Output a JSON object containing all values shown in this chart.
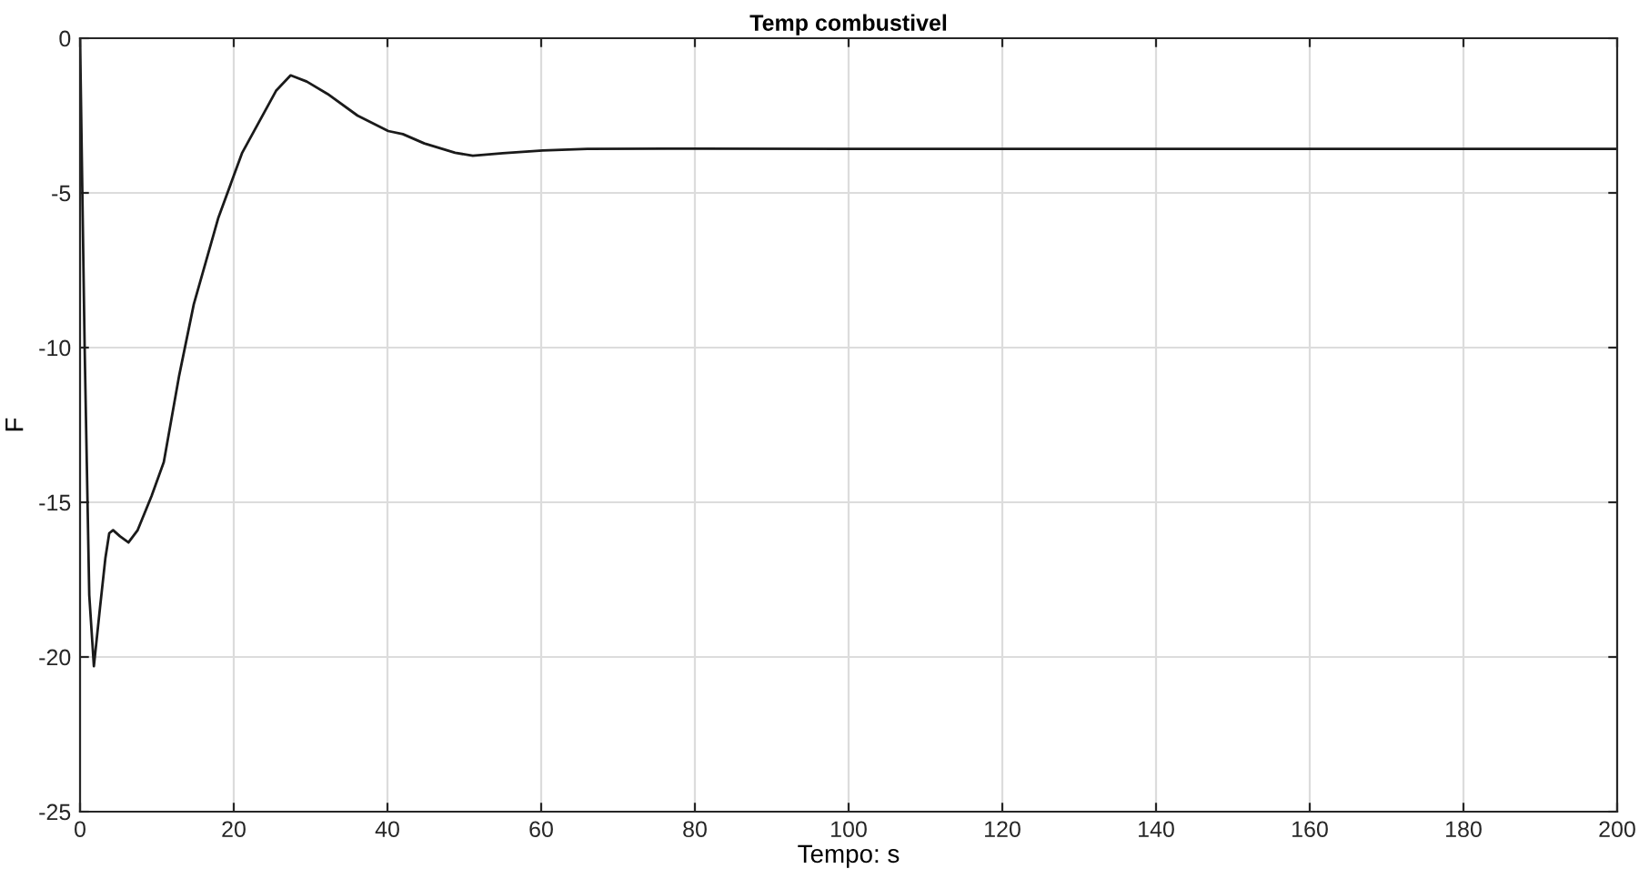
{
  "chart_data": {
    "type": "line",
    "title": "Temp combustivel",
    "xlabel": "Tempo: s",
    "ylabel": "F",
    "xlim": [
      0,
      200
    ],
    "ylim": [
      -25,
      0
    ],
    "xticks": [
      0,
      20,
      40,
      60,
      80,
      100,
      120,
      140,
      160,
      180,
      200
    ],
    "yticks": [
      -25,
      -20,
      -15,
      -10,
      -5,
      0
    ],
    "grid": true,
    "series": [
      {
        "color": "#1a1a1a",
        "x": [
          0,
          0.6,
          1.2,
          1.8,
          2.6,
          3.3,
          3.8,
          4.3,
          5.2,
          6.3,
          7.5,
          9.3,
          10.9,
          12.9,
          14.8,
          18,
          21.1,
          25.5,
          27.4,
          29.5,
          32.2,
          36.1,
          40.1,
          42,
          44.8,
          48.8,
          51.1,
          55,
          60.2,
          66,
          76.4,
          100,
          150,
          200
        ],
        "values": [
          0,
          -10,
          -18,
          -20.3,
          -18.4,
          -16.8,
          -16.0,
          -15.9,
          -16.1,
          -16.3,
          -15.9,
          -14.8,
          -13.7,
          -10.9,
          -8.6,
          -5.8,
          -3.7,
          -1.7,
          -1.2,
          -1.4,
          -1.8,
          -2.5,
          -3.0,
          -3.1,
          -3.4,
          -3.7,
          -3.8,
          -3.72,
          -3.63,
          -3.58,
          -3.57,
          -3.58,
          -3.58,
          -3.58
        ]
      }
    ]
  }
}
